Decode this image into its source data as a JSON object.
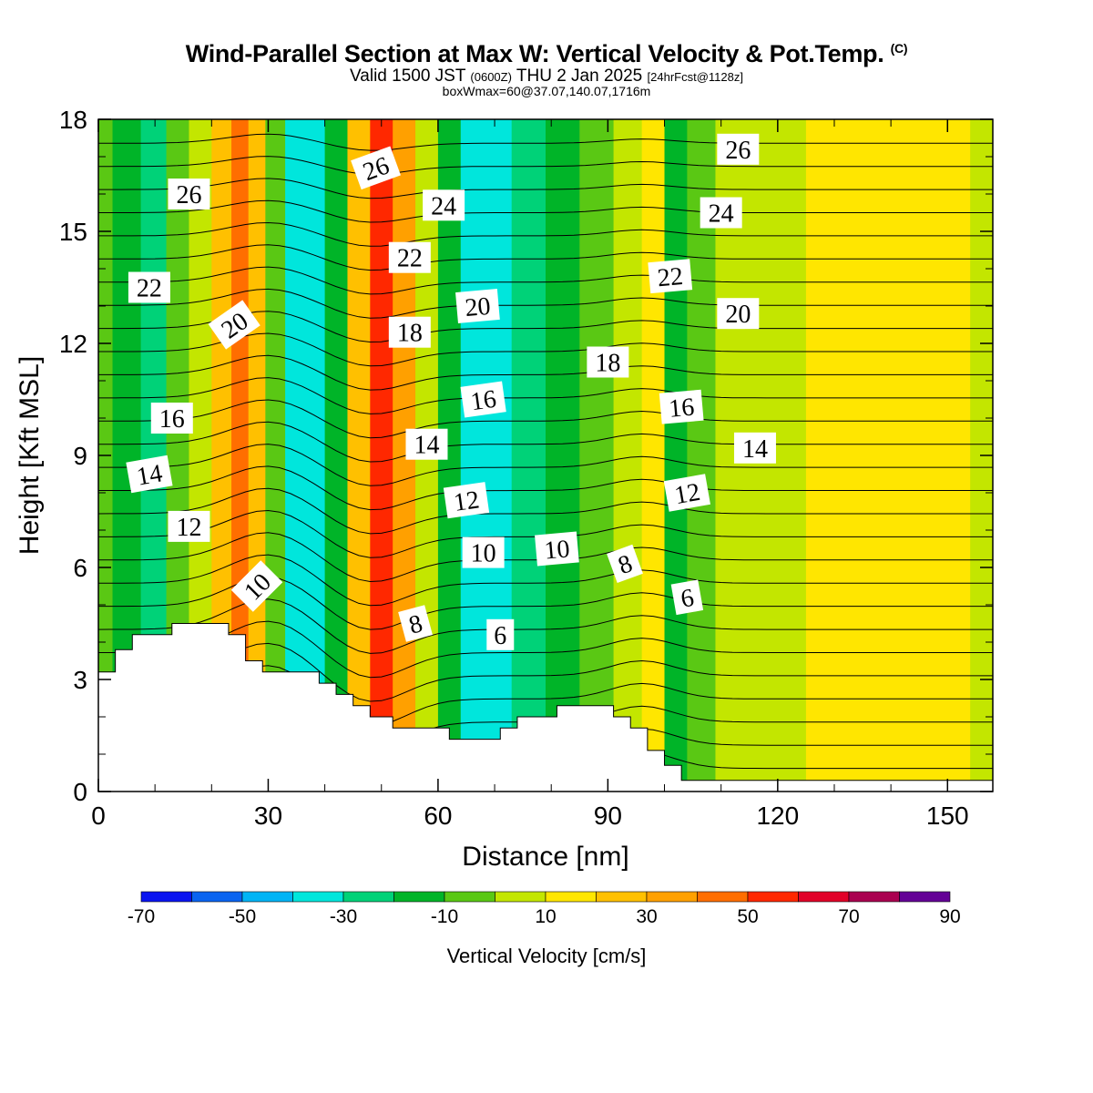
{
  "title": {
    "main": "Wind-Parallel Section at Max W: Vertical Velocity & Pot.Temp.",
    "copyright": "(C)",
    "valid_prefix": "Valid 1500 JST",
    "valid_utc": "(0600Z)",
    "valid_date": "THU 2 Jan 2025",
    "valid_fcst": "[24hrFcst@1128z]",
    "box": "boxWmax=60@37.07,140.07,1716m"
  },
  "chart_data": {
    "type": "heatmap",
    "xlabel": "Distance [nm]",
    "ylabel": "Height [Kft MSL]",
    "xlim": [
      0,
      158
    ],
    "ylim": [
      0,
      18
    ],
    "x_ticks": [
      "0",
      "30",
      "60",
      "90",
      "120",
      "150"
    ],
    "y_ticks": [
      "0",
      "3",
      "6",
      "9",
      "12",
      "15",
      "18"
    ],
    "colorbar": {
      "title": "Vertical Velocity [cm/s]",
      "labels": [
        "-70",
        "-50",
        "-30",
        "-10",
        "10",
        "30",
        "50",
        "70",
        "90"
      ],
      "bounds": [
        -70,
        90
      ],
      "colors": [
        "#0a14f0",
        "#0a64f0",
        "#00b4f5",
        "#00e6dc",
        "#00d278",
        "#00b428",
        "#5ac814",
        "#c3e600",
        "#ffe600",
        "#ffc000",
        "#ffa000",
        "#ff6e00",
        "#ff2800",
        "#e10028",
        "#aa0050",
        "#640096"
      ]
    },
    "vertical_velocity_columns": [
      {
        "x": 0,
        "w": -8
      },
      {
        "x": 5,
        "w": -15
      },
      {
        "x": 10,
        "w": -25
      },
      {
        "x": 14,
        "w": -10
      },
      {
        "x": 18,
        "w": 5
      },
      {
        "x": 22,
        "w": 25
      },
      {
        "x": 25,
        "w": 45
      },
      {
        "x": 28,
        "w": 20
      },
      {
        "x": 31,
        "w": -10
      },
      {
        "x": 35,
        "w": -35
      },
      {
        "x": 38,
        "w": -40
      },
      {
        "x": 42,
        "w": -20
      },
      {
        "x": 46,
        "w": 20
      },
      {
        "x": 50,
        "w": 50
      },
      {
        "x": 54,
        "w": 30
      },
      {
        "x": 58,
        "w": 5
      },
      {
        "x": 62,
        "w": -15
      },
      {
        "x": 66,
        "w": -40
      },
      {
        "x": 70,
        "w": -35
      },
      {
        "x": 76,
        "w": -25
      },
      {
        "x": 82,
        "w": -20
      },
      {
        "x": 88,
        "w": -10
      },
      {
        "x": 94,
        "w": 5
      },
      {
        "x": 98,
        "w": 10
      },
      {
        "x": 102,
        "w": -15
      },
      {
        "x": 106,
        "w": -5
      },
      {
        "x": 112,
        "w": 0
      },
      {
        "x": 120,
        "w": 8
      },
      {
        "x": 130,
        "w": 12
      },
      {
        "x": 140,
        "w": 15
      },
      {
        "x": 150,
        "w": 10
      },
      {
        "x": 158,
        "w": 5
      }
    ],
    "terrain": [
      {
        "x": 0,
        "h": 3.2
      },
      {
        "x": 3,
        "h": 3.2
      },
      {
        "x": 3,
        "h": 3.8
      },
      {
        "x": 6,
        "h": 3.8
      },
      {
        "x": 6,
        "h": 4.2
      },
      {
        "x": 13,
        "h": 4.2
      },
      {
        "x": 13,
        "h": 4.5
      },
      {
        "x": 23,
        "h": 4.5
      },
      {
        "x": 23,
        "h": 4.2
      },
      {
        "x": 26,
        "h": 4.2
      },
      {
        "x": 26,
        "h": 3.5
      },
      {
        "x": 29,
        "h": 3.5
      },
      {
        "x": 29,
        "h": 3.2
      },
      {
        "x": 39,
        "h": 3.2
      },
      {
        "x": 39,
        "h": 2.9
      },
      {
        "x": 42,
        "h": 2.9
      },
      {
        "x": 42,
        "h": 2.6
      },
      {
        "x": 45,
        "h": 2.6
      },
      {
        "x": 45,
        "h": 2.3
      },
      {
        "x": 48,
        "h": 2.3
      },
      {
        "x": 48,
        "h": 2.0
      },
      {
        "x": 52,
        "h": 2.0
      },
      {
        "x": 52,
        "h": 1.7
      },
      {
        "x": 62,
        "h": 1.7
      },
      {
        "x": 62,
        "h": 1.4
      },
      {
        "x": 71,
        "h": 1.4
      },
      {
        "x": 71,
        "h": 1.7
      },
      {
        "x": 74,
        "h": 1.7
      },
      {
        "x": 74,
        "h": 2.0
      },
      {
        "x": 81,
        "h": 2.0
      },
      {
        "x": 81,
        "h": 2.3
      },
      {
        "x": 91,
        "h": 2.3
      },
      {
        "x": 91,
        "h": 2.0
      },
      {
        "x": 94,
        "h": 2.0
      },
      {
        "x": 94,
        "h": 1.7
      },
      {
        "x": 97,
        "h": 1.7
      },
      {
        "x": 97,
        "h": 1.1
      },
      {
        "x": 100,
        "h": 1.1
      },
      {
        "x": 100,
        "h": 0.7
      },
      {
        "x": 103,
        "h": 0.7
      },
      {
        "x": 103,
        "h": 0.3
      },
      {
        "x": 158,
        "h": 0.3
      }
    ],
    "theta_contour_labels": [
      {
        "text": "26",
        "x": 16,
        "y": 16.0,
        "rot": 0
      },
      {
        "text": "22",
        "x": 9,
        "y": 13.5,
        "rot": 0
      },
      {
        "text": "20",
        "x": 24,
        "y": 12.5,
        "rot": -35
      },
      {
        "text": "16",
        "x": 13,
        "y": 10.0,
        "rot": 0
      },
      {
        "text": "14",
        "x": 9,
        "y": 8.5,
        "rot": -10
      },
      {
        "text": "12",
        "x": 16,
        "y": 7.1,
        "rot": 0
      },
      {
        "text": "10",
        "x": 28,
        "y": 5.5,
        "rot": -45
      },
      {
        "text": "26",
        "x": 49,
        "y": 16.7,
        "rot": -20
      },
      {
        "text": "22",
        "x": 55,
        "y": 14.3,
        "rot": 0
      },
      {
        "text": "18",
        "x": 55,
        "y": 12.3,
        "rot": 0
      },
      {
        "text": "14",
        "x": 58,
        "y": 9.3,
        "rot": 0
      },
      {
        "text": "8",
        "x": 56,
        "y": 4.5,
        "rot": -15
      },
      {
        "text": "24",
        "x": 61,
        "y": 15.7,
        "rot": 0
      },
      {
        "text": "20",
        "x": 67,
        "y": 13.0,
        "rot": -5
      },
      {
        "text": "16",
        "x": 68,
        "y": 10.5,
        "rot": -8
      },
      {
        "text": "12",
        "x": 65,
        "y": 7.8,
        "rot": -8
      },
      {
        "text": "10",
        "x": 68,
        "y": 6.4,
        "rot": 0
      },
      {
        "text": "6",
        "x": 71,
        "y": 4.2,
        "rot": 0
      },
      {
        "text": "10",
        "x": 81,
        "y": 6.5,
        "rot": -5
      },
      {
        "text": "18",
        "x": 90,
        "y": 11.5,
        "rot": 0
      },
      {
        "text": "8",
        "x": 93,
        "y": 6.1,
        "rot": -20
      },
      {
        "text": "22",
        "x": 101,
        "y": 13.8,
        "rot": -5
      },
      {
        "text": "16",
        "x": 103,
        "y": 10.3,
        "rot": -5
      },
      {
        "text": "12",
        "x": 104,
        "y": 8.0,
        "rot": -10
      },
      {
        "text": "6",
        "x": 104,
        "y": 5.2,
        "rot": -10
      },
      {
        "text": "26",
        "x": 113,
        "y": 17.2,
        "rot": 0
      },
      {
        "text": "24",
        "x": 110,
        "y": 15.5,
        "rot": 0
      },
      {
        "text": "20",
        "x": 113,
        "y": 12.8,
        "rot": 0
      },
      {
        "text": "14",
        "x": 116,
        "y": 9.2,
        "rot": 0
      }
    ]
  }
}
